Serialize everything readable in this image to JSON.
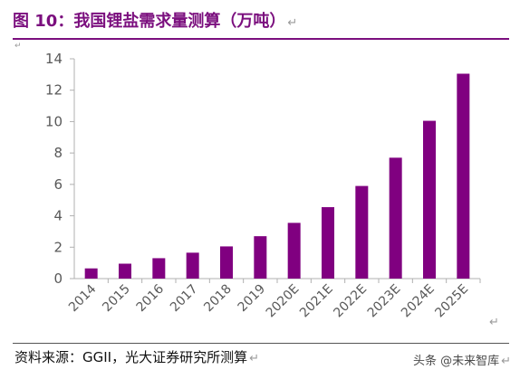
{
  "figure": {
    "title": "图 10：我国锂盐需求量测算（万吨）",
    "source": "资料来源：GGII，光大证券研究所测算",
    "watermark": "头条 @未来智库"
  },
  "colors": {
    "accent": "#7b0f7e",
    "bar": "#800080",
    "axis": "#b0b0b0",
    "text": "#595959"
  },
  "chart_data": {
    "type": "bar",
    "title": "图 10：我国锂盐需求量测算（万吨）",
    "xlabel": "",
    "ylabel": "",
    "categories": [
      "2014",
      "2015",
      "2016",
      "2017",
      "2018",
      "2019",
      "2020E",
      "2021E",
      "2022E",
      "2023E",
      "2024E",
      "2025E"
    ],
    "values": [
      0.65,
      0.95,
      1.3,
      1.65,
      2.05,
      2.7,
      3.55,
      4.55,
      5.9,
      7.7,
      10.05,
      13.05
    ],
    "ylim": [
      0,
      14
    ],
    "yticks": [
      0,
      2,
      4,
      6,
      8,
      10,
      12,
      14
    ],
    "grid": false,
    "legend": "none"
  }
}
